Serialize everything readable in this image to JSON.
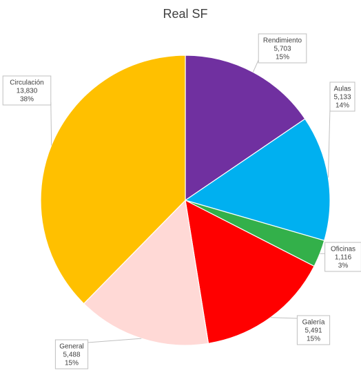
{
  "chart_data": {
    "type": "pie",
    "title": "Real SF",
    "legend": "none",
    "slices": [
      {
        "name": "Rendimiento",
        "value": 5703,
        "value_label": "5,703",
        "percent_label": "15%",
        "color": "#7030A0"
      },
      {
        "name": "Aulas",
        "value": 5133,
        "value_label": "5,133",
        "percent_label": "14%",
        "color": "#00B0F0"
      },
      {
        "name": "Oficinas",
        "value": 1116,
        "value_label": "1,116",
        "percent_label": "3%",
        "color": "#33B04A"
      },
      {
        "name": "Galería",
        "value": 5491,
        "value_label": "5,491",
        "percent_label": "15%",
        "color": "#FF0000"
      },
      {
        "name": "General",
        "value": 5488,
        "value_label": "5,488",
        "percent_label": "15%",
        "color": "#FFD9D6"
      },
      {
        "name": "Circulación",
        "value": 13830,
        "value_label": "13,830",
        "percent_label": "38%",
        "color": "#FFC000"
      }
    ]
  }
}
